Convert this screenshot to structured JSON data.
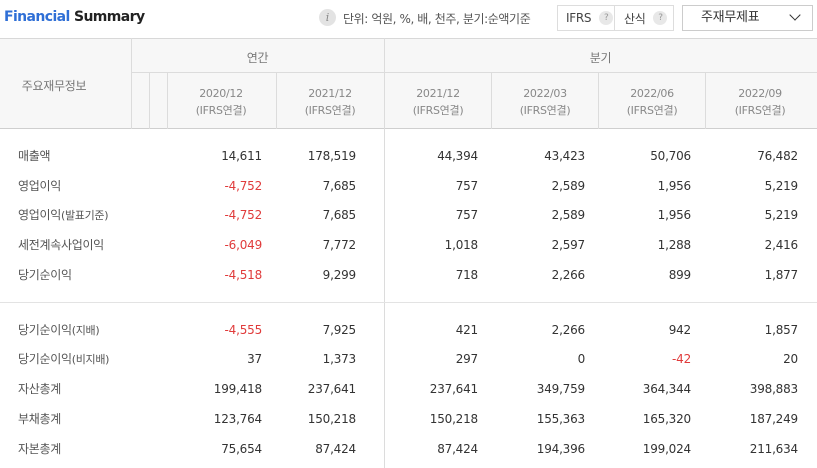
{
  "header": {
    "title_part1": "Financial",
    "title_part2": " Summary",
    "info_icon": "i",
    "unit_text": "단위: 억원, %, 배, 천주, 분기:순액기준",
    "ifrs_label": "IFRS",
    "calc_label": "산식",
    "help_glyph": "?",
    "dropdown_value": "주재무제표"
  },
  "table": {
    "row_header_label": "주요재무정보",
    "group_annual": "연간",
    "group_quarter": "분기",
    "columns": [
      {
        "period": "2020/12",
        "basis": "(IFRS연결)"
      },
      {
        "period": "2021/12",
        "basis": "(IFRS연결)"
      },
      {
        "period": "2021/12",
        "basis": "(IFRS연결)"
      },
      {
        "period": "2022/03",
        "basis": "(IFRS연결)"
      },
      {
        "period": "2022/06",
        "basis": "(IFRS연결)"
      },
      {
        "period": "2022/09",
        "basis": "(IFRS연결)"
      }
    ],
    "rows": [
      {
        "label": "매출액",
        "suffix": "",
        "values": [
          "14,611",
          "178,519",
          "44,394",
          "43,423",
          "50,706",
          "76,482"
        ]
      },
      {
        "label": "영업이익",
        "suffix": "",
        "values": [
          "-4,752",
          "7,685",
          "757",
          "2,589",
          "1,956",
          "5,219"
        ]
      },
      {
        "label": "영업이익",
        "suffix": "(발표기준)",
        "values": [
          "-4,752",
          "7,685",
          "757",
          "2,589",
          "1,956",
          "5,219"
        ]
      },
      {
        "label": "세전계속사업이익",
        "suffix": "",
        "values": [
          "-6,049",
          "7,772",
          "1,018",
          "2,597",
          "1,288",
          "2,416"
        ]
      },
      {
        "label": "당기순이익",
        "suffix": "",
        "values": [
          "-4,518",
          "9,299",
          "718",
          "2,266",
          "899",
          "1,877"
        ]
      },
      {
        "label": "당기순이익",
        "suffix": "(지배)",
        "values": [
          "-4,555",
          "7,925",
          "421",
          "2,266",
          "942",
          "1,857"
        ]
      },
      {
        "label": "당기순이익",
        "suffix": "(비지배)",
        "values": [
          "37",
          "1,373",
          "297",
          "0",
          "-42",
          "20"
        ]
      },
      {
        "label": "자산총계",
        "suffix": "",
        "values": [
          "199,418",
          "237,641",
          "237,641",
          "349,759",
          "364,344",
          "398,883"
        ]
      },
      {
        "label": "부채총계",
        "suffix": "",
        "values": [
          "123,764",
          "150,218",
          "150,218",
          "155,363",
          "165,320",
          "187,249"
        ]
      },
      {
        "label": "자본총계",
        "suffix": "",
        "values": [
          "75,654",
          "87,424",
          "87,424",
          "194,396",
          "199,024",
          "211,634"
        ]
      }
    ]
  },
  "colors": {
    "negative": "#e03b3b",
    "title_accent": "#2f6fd6"
  }
}
